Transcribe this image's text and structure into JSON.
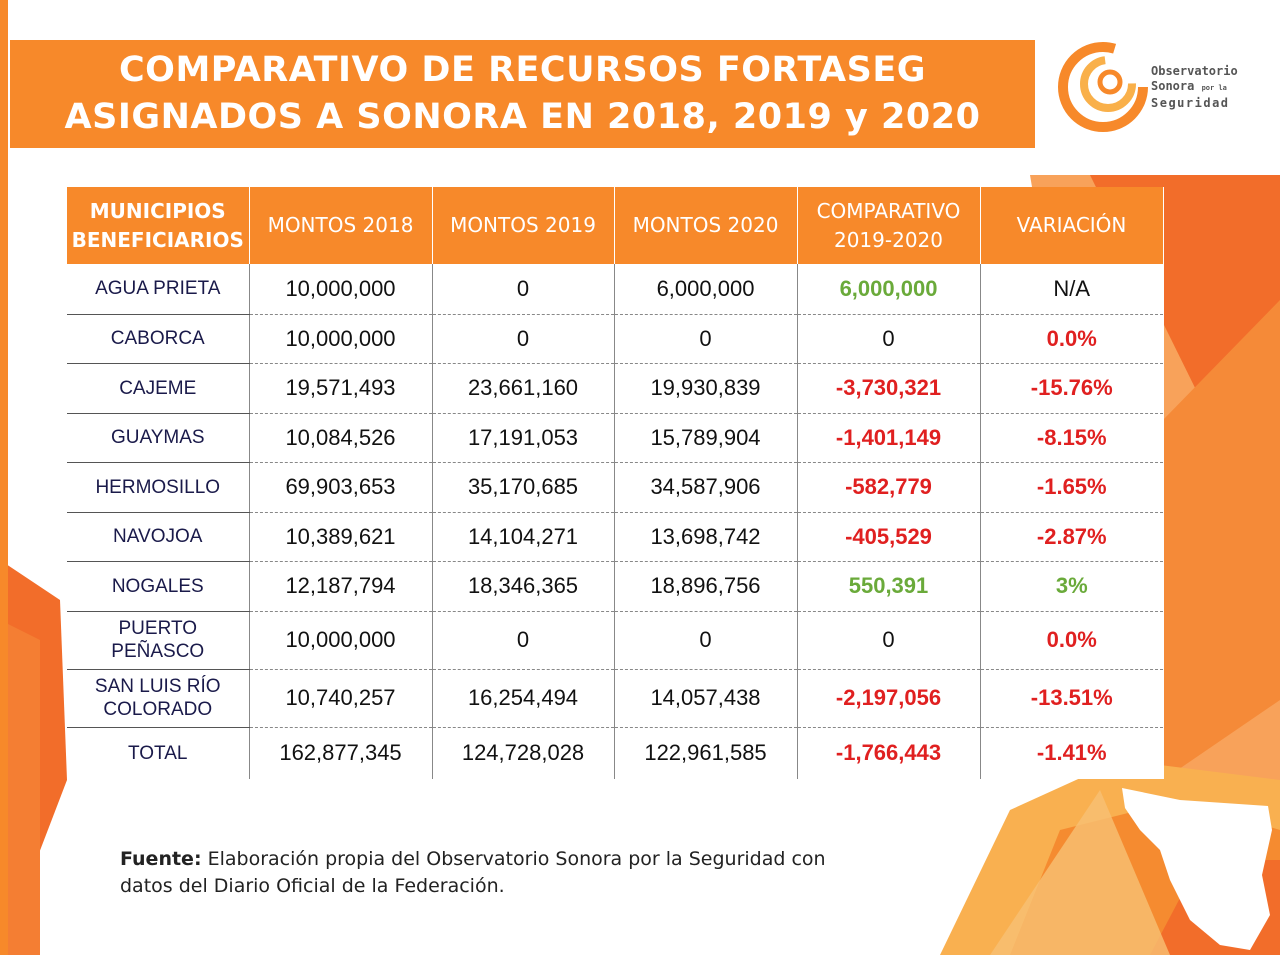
{
  "title": "COMPARATIVO DE RECURSOS FORTASEG ASIGNADOS A SONORA EN 2018, 2019 y 2020",
  "logo": {
    "icon": "observatorio-swirl-logo",
    "line1": "Observatorio",
    "line2": "Sonora",
    "line2_small": "por la",
    "line3": "Seguridad"
  },
  "table": {
    "headers": [
      "MUNICIPIOS BENEFICIARIOS",
      "MONTOS 2018",
      "MONTOS 2019",
      "MONTOS 2020",
      "COMPARATIVO 2019-2020",
      "VARIACIÓN"
    ],
    "rows": [
      {
        "municipio": "AGUA PRIETA",
        "m2018": "10,000,000",
        "m2019": "0",
        "m2020": "6,000,000",
        "comparativo": "6,000,000",
        "variacion": "N/A",
        "comp_status": "pos",
        "var_status": "plain"
      },
      {
        "municipio": "CABORCA",
        "m2018": "10,000,000",
        "m2019": "0",
        "m2020": "0",
        "comparativo": "0",
        "variacion": "0.0%",
        "comp_status": "plain",
        "var_status": "neg"
      },
      {
        "municipio": "CAJEME",
        "m2018": "19,571,493",
        "m2019": "23,661,160",
        "m2020": "19,930,839",
        "comparativo": "-3,730,321",
        "variacion": "-15.76%",
        "comp_status": "neg",
        "var_status": "neg"
      },
      {
        "municipio": "GUAYMAS",
        "m2018": "10,084,526",
        "m2019": "17,191,053",
        "m2020": "15,789,904",
        "comparativo": "-1,401,149",
        "variacion": "-8.15%",
        "comp_status": "neg",
        "var_status": "neg"
      },
      {
        "municipio": "HERMOSILLO",
        "m2018": "69,903,653",
        "m2019": "35,170,685",
        "m2020": "34,587,906",
        "comparativo": "-582,779",
        "variacion": "-1.65%",
        "comp_status": "neg",
        "var_status": "neg"
      },
      {
        "municipio": "NAVOJOA",
        "m2018": "10,389,621",
        "m2019": "14,104,271",
        "m2020": "13,698,742",
        "comparativo": "-405,529",
        "variacion": "-2.87%",
        "comp_status": "neg",
        "var_status": "neg"
      },
      {
        "municipio": "NOGALES",
        "m2018": "12,187,794",
        "m2019": "18,346,365",
        "m2020": "18,896,756",
        "comparativo": "550,391",
        "variacion": "3%",
        "comp_status": "pos",
        "var_status": "pos"
      },
      {
        "municipio": "PUERTO PEÑASCO",
        "m2018": "10,000,000",
        "m2019": "0",
        "m2020": "0",
        "comparativo": "0",
        "variacion": "0.0%",
        "comp_status": "plain",
        "var_status": "neg"
      },
      {
        "municipio": "SAN LUIS RÍO COLORADO",
        "m2018": "10,740,257",
        "m2019": "16,254,494",
        "m2020": "14,057,438",
        "comparativo": "-2,197,056",
        "variacion": "-13.51%",
        "comp_status": "neg",
        "var_status": "neg"
      },
      {
        "municipio": "TOTAL",
        "m2018": "162,877,345",
        "m2019": "124,728,028",
        "m2020": "122,961,585",
        "comparativo": "-1,766,443",
        "variacion": "-1.41%",
        "comp_status": "neg",
        "var_status": "neg"
      }
    ]
  },
  "source": {
    "label": "Fuente:",
    "text": " Elaboración propia del Observatorio Sonora por la Seguridad con datos del Diario Oficial de la Federación."
  },
  "colors": {
    "brand_orange": "#f7892a",
    "negative_red": "#e02020",
    "positive_green": "#6aaa3a"
  }
}
